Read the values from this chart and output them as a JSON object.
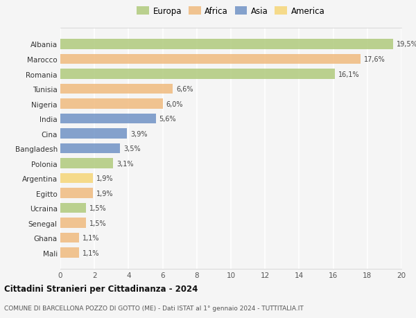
{
  "countries": [
    "Albania",
    "Marocco",
    "Romania",
    "Tunisia",
    "Nigeria",
    "India",
    "Cina",
    "Bangladesh",
    "Polonia",
    "Argentina",
    "Egitto",
    "Ucraina",
    "Senegal",
    "Ghana",
    "Mali"
  ],
  "values": [
    19.5,
    17.6,
    16.1,
    6.6,
    6.0,
    5.6,
    3.9,
    3.5,
    3.1,
    1.9,
    1.9,
    1.5,
    1.5,
    1.1,
    1.1
  ],
  "labels": [
    "19,5%",
    "17,6%",
    "16,1%",
    "6,6%",
    "6,0%",
    "5,6%",
    "3,9%",
    "3,5%",
    "3,1%",
    "1,9%",
    "1,9%",
    "1,5%",
    "1,5%",
    "1,1%",
    "1,1%"
  ],
  "continents": [
    "Europa",
    "Africa",
    "Europa",
    "Africa",
    "Africa",
    "Asia",
    "Asia",
    "Asia",
    "Europa",
    "America",
    "Africa",
    "Europa",
    "Africa",
    "Africa",
    "Africa"
  ],
  "colors": {
    "Europa": "#adc878",
    "Africa": "#f0b87a",
    "Asia": "#6b8fc4",
    "America": "#f5d473"
  },
  "bg_color": "#f5f5f5",
  "grid_color": "#ffffff",
  "title": "Cittadini Stranieri per Cittadinanza - 2024",
  "subtitle": "COMUNE DI BARCELLONA POZZO DI GOTTO (ME) - Dati ISTAT al 1° gennaio 2024 - TUTTITALIA.IT",
  "xlim": [
    0,
    20
  ],
  "xticks": [
    0,
    2,
    4,
    6,
    8,
    10,
    12,
    14,
    16,
    18,
    20
  ],
  "bar_alpha": 0.82,
  "legend_order": [
    "Europa",
    "Africa",
    "Asia",
    "America"
  ]
}
